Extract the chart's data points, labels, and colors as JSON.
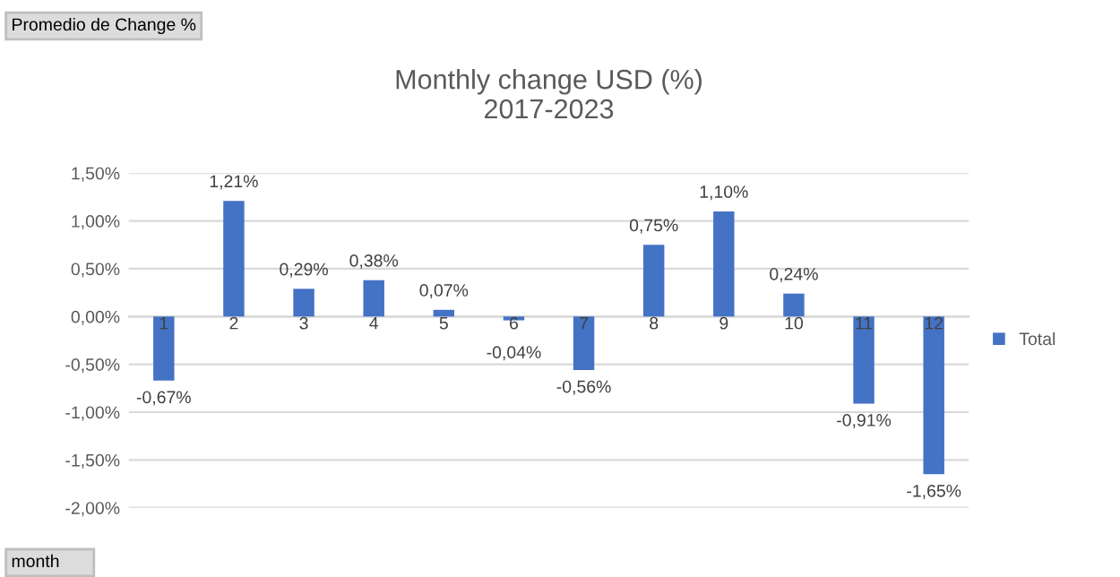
{
  "chart_data": {
    "type": "bar",
    "title": "Monthly change USD (%)\n2017-2023",
    "categories": [
      "1",
      "2",
      "3",
      "4",
      "5",
      "6",
      "7",
      "8",
      "9",
      "10",
      "11",
      "12"
    ],
    "series": [
      {
        "name": "Total",
        "color": "#4472c4",
        "values": [
          -0.67,
          1.21,
          0.29,
          0.38,
          0.07,
          -0.04,
          -0.56,
          0.75,
          1.1,
          0.24,
          -0.91,
          -1.65
        ],
        "value_labels": [
          "-0,67%",
          "1,21%",
          "0,29%",
          "0,38%",
          "0,07%",
          "-0,04%",
          "-0,56%",
          "0,75%",
          "1,10%",
          "0,24%",
          "-0,91%",
          "-1,65%"
        ]
      }
    ],
    "ylim": [
      -2.0,
      1.5
    ],
    "yticks": [
      {
        "value": -2.0,
        "label": "-2,00%"
      },
      {
        "value": -1.5,
        "label": "-1,50%"
      },
      {
        "value": -1.0,
        "label": "-1,00%"
      },
      {
        "value": -0.5,
        "label": "-0,50%"
      },
      {
        "value": 0.0,
        "label": "0,00%"
      },
      {
        "value": 0.5,
        "label": "0,50%"
      },
      {
        "value": 1.0,
        "label": "1,00%"
      },
      {
        "value": 1.5,
        "label": "1,50%"
      }
    ],
    "grid": "y",
    "legend": "right",
    "annotations": [
      "Promedio de Change %",
      "month"
    ]
  }
}
